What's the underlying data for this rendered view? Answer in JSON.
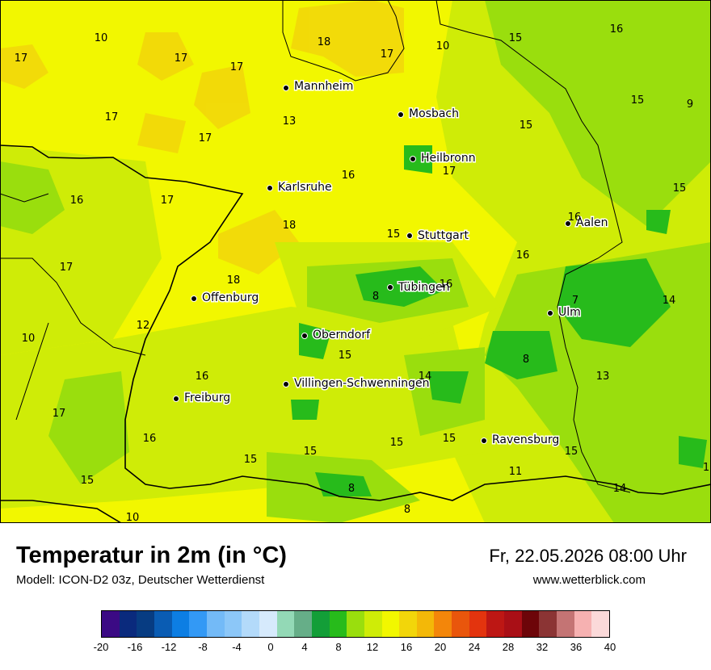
{
  "map": {
    "cities": [
      {
        "name": "Mannheim"
      },
      {
        "name": "Mosbach"
      },
      {
        "name": "Heilbronn"
      },
      {
        "name": "Karlsruhe"
      },
      {
        "name": "Stuttgart"
      },
      {
        "name": "Aalen"
      },
      {
        "name": "Tübingen"
      },
      {
        "name": "Offenburg"
      },
      {
        "name": "Ulm"
      },
      {
        "name": "Oberndorf"
      },
      {
        "name": "Villingen-Schwenningen"
      },
      {
        "name": "Freiburg"
      },
      {
        "name": "Ravensburg"
      }
    ],
    "values": [
      "10",
      "18",
      "17",
      "10",
      "15",
      "16",
      "17",
      "17",
      "17",
      "15",
      "9",
      "17",
      "13",
      "15",
      "17",
      "17",
      "16",
      "16",
      "17",
      "15",
      "18",
      "16",
      "15",
      "16",
      "17",
      "18",
      "16",
      "7",
      "8",
      "14",
      "12",
      "10",
      "8",
      "15",
      "16",
      "14",
      "13",
      "17",
      "16",
      "15",
      "15",
      "15",
      "15",
      "11",
      "8",
      "8",
      "10",
      "14",
      "1"
    ]
  },
  "title": "Temperatur in 2m (in °C)",
  "subtitle": "Modell: ICON-D2 03z, Deutscher Wetterdienst",
  "datetime": "Fr, 22.05.2026 08:00 Uhr",
  "website": "www.wetterblick.com",
  "legend": {
    "colors": [
      "#3b0a84",
      "#0a2a7d",
      "#073c82",
      "#0a5cb3",
      "#0d7ee3",
      "#3399f5",
      "#73baf7",
      "#8cc7f8",
      "#b3dafa",
      "#d6eafc",
      "#93d9b6",
      "#66ae88",
      "#139e38",
      "#27bb1b",
      "#9ade0d",
      "#cfec07",
      "#f2f700",
      "#f2d60a",
      "#f3b808",
      "#f3860a",
      "#e9560c",
      "#e3340e",
      "#bd1714",
      "#a90f16",
      "#6d0509",
      "#8b3434",
      "#c47474",
      "#f6b1b1",
      "#fbd9d9"
    ],
    "ticks": [
      "-20",
      "-16",
      "-12",
      "-8",
      "-4",
      "0",
      "4",
      "8",
      "12",
      "16",
      "20",
      "24",
      "28",
      "32",
      "36",
      "40"
    ]
  }
}
